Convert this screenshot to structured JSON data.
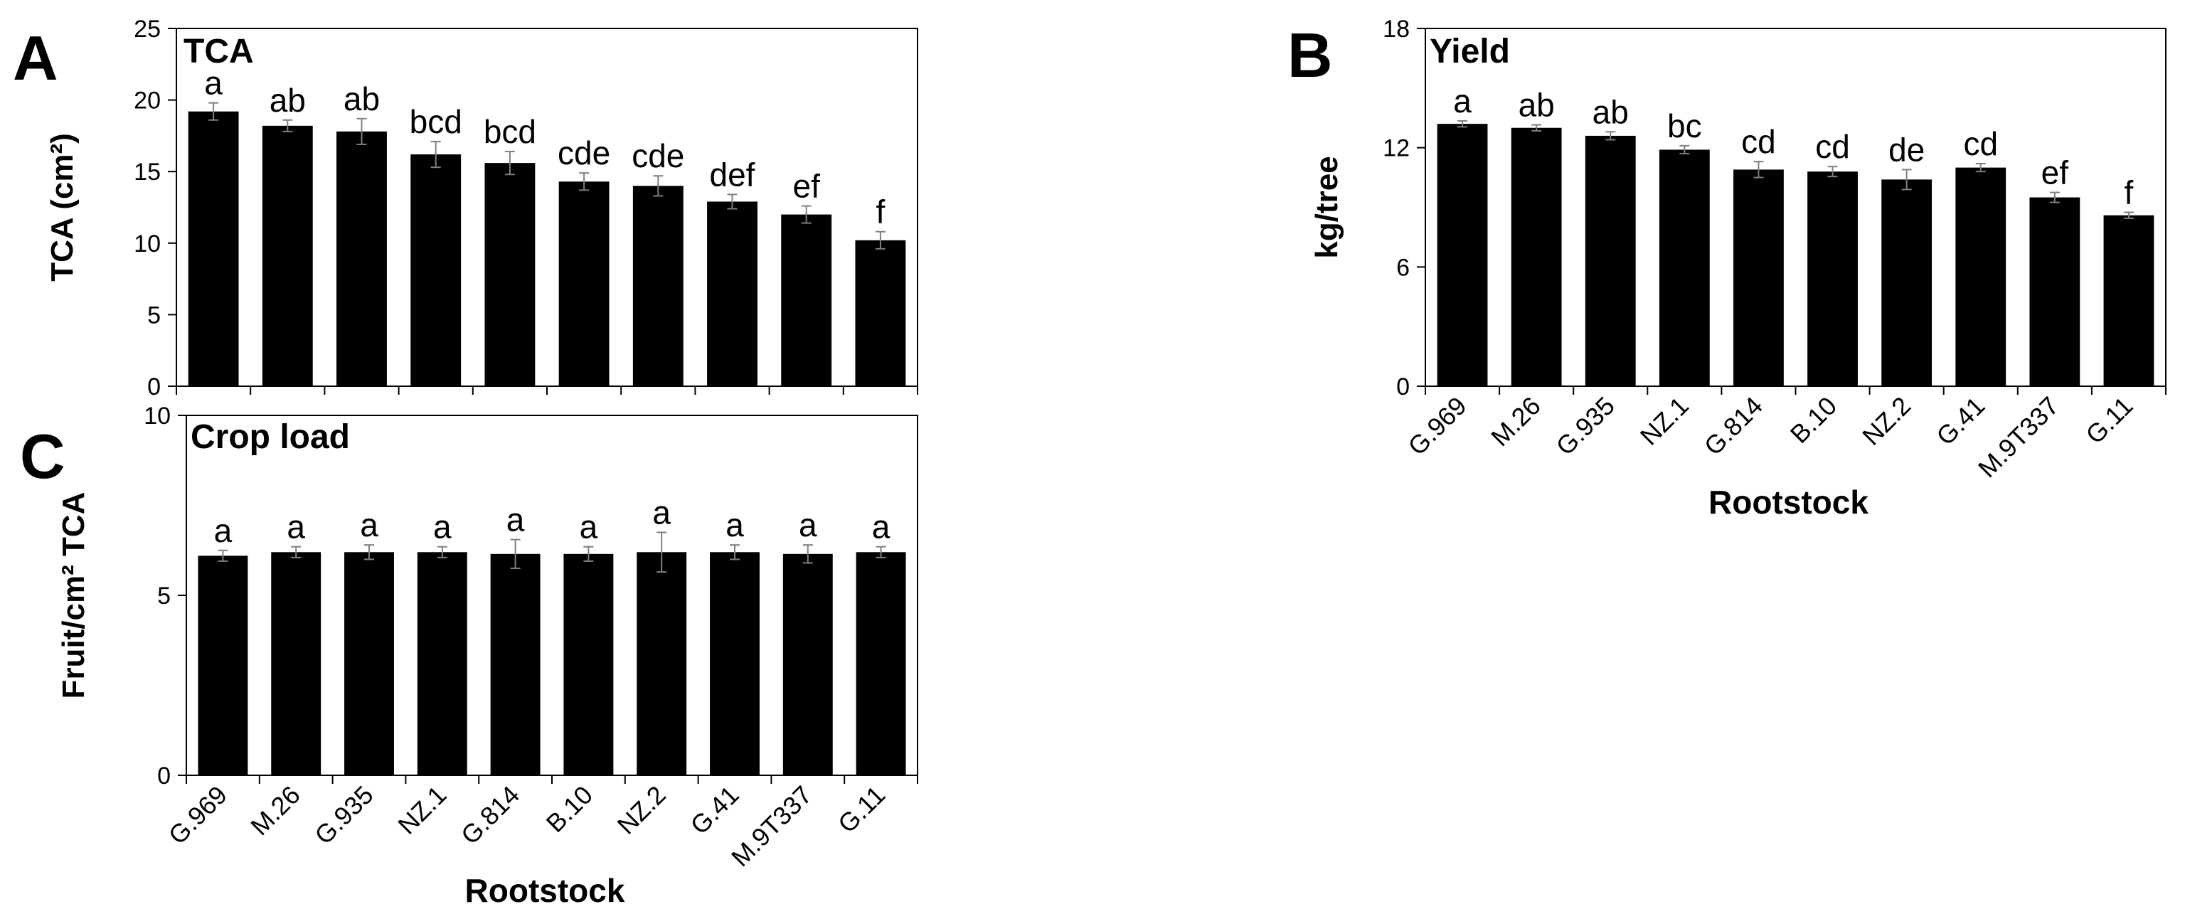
{
  "chart_data": [
    {
      "panel": "A",
      "type": "bar",
      "title": "TCA",
      "ylabel": "TCA (cm²)",
      "xlabel": "",
      "ylim": [
        0,
        25
      ],
      "yticks": [
        0,
        5,
        10,
        15,
        20,
        25
      ],
      "ytick_labels": [
        "0",
        "5",
        "10",
        "15",
        "20",
        "25"
      ],
      "grid": false,
      "categories": [
        "G.969",
        "M.26",
        "G.935",
        "NZ.1",
        "G.814",
        "B.10",
        "NZ.2",
        "G.41",
        "M.9T337",
        "G.11"
      ],
      "values": [
        19.2,
        18.2,
        17.8,
        16.2,
        15.6,
        14.3,
        14.0,
        12.9,
        12.0,
        10.2
      ],
      "errors": [
        0.6,
        0.4,
        0.9,
        0.9,
        0.8,
        0.6,
        0.7,
        0.5,
        0.6,
        0.6
      ],
      "labels": [
        "a",
        "ab",
        "ab",
        "bcd",
        "bcd",
        "cde",
        "cde",
        "def",
        "ef",
        "f"
      ]
    },
    {
      "panel": "B",
      "type": "bar",
      "title": "Yield",
      "ylabel": "kg/tree",
      "xlabel": "Rootstock",
      "ylim": [
        0,
        18
      ],
      "yticks": [
        0,
        6,
        12,
        18
      ],
      "ytick_labels": [
        "0",
        "6",
        "12",
        "18"
      ],
      "grid": false,
      "categories": [
        "G.969",
        "M.26",
        "G.935",
        "NZ.1",
        "G.814",
        "B.10",
        "NZ.2",
        "G.41",
        "M.9T337",
        "G.11"
      ],
      "values": [
        13.2,
        13.0,
        12.6,
        11.9,
        10.9,
        10.8,
        10.4,
        11.0,
        9.5,
        8.6
      ],
      "errors": [
        0.15,
        0.15,
        0.2,
        0.2,
        0.4,
        0.25,
        0.5,
        0.2,
        0.25,
        0.15
      ],
      "labels": [
        "a",
        "ab",
        "ab",
        "bc",
        "cd",
        "cd",
        "de",
        "cd",
        "ef",
        "f"
      ]
    },
    {
      "panel": "C",
      "type": "bar",
      "title": "Crop load",
      "ylabel": "Fruit/cm² TCA",
      "xlabel": "Rootstock",
      "ylim": [
        0,
        10
      ],
      "yticks": [
        0,
        5,
        10
      ],
      "ytick_labels": [
        "0",
        "5",
        "10"
      ],
      "grid": false,
      "categories": [
        "G.969",
        "M.26",
        "G.935",
        "NZ.1",
        "G.814",
        "B.10",
        "NZ.2",
        "G.41",
        "M.9T337",
        "G.11"
      ],
      "values": [
        6.1,
        6.2,
        6.2,
        6.2,
        6.15,
        6.15,
        6.2,
        6.2,
        6.15,
        6.2
      ],
      "errors": [
        0.15,
        0.15,
        0.2,
        0.15,
        0.4,
        0.2,
        0.55,
        0.2,
        0.25,
        0.15
      ],
      "labels": [
        "a",
        "a",
        "a",
        "a",
        "a",
        "a",
        "a",
        "a",
        "a",
        "a"
      ]
    }
  ]
}
